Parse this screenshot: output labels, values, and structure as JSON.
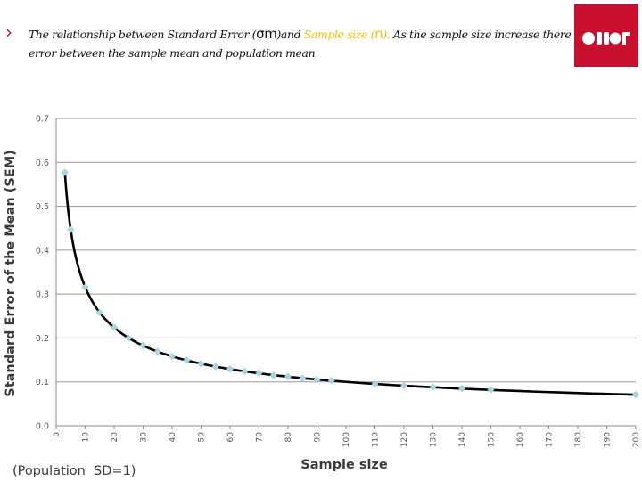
{
  "slide": {
    "bullet": "›",
    "text_part1": "The relationship between Standard Error (",
    "sigma_symbol": "σm",
    "text_part2": ")and ",
    "sample_size_label": "Sample size (",
    "n_symbol": "n",
    "sample_size_close": ").",
    "text_part3": " As the sample size increase there will be less error between the sample mean and population mean"
  },
  "colors": {
    "logo_red": "#c8102e",
    "highlight": "#f2c200",
    "curve": "#000000",
    "marker": "#a9d7e2",
    "grid": "#9a9a9a"
  },
  "chart_data": {
    "type": "line",
    "title": "",
    "xlabel": "Sample size",
    "ylabel": "Standard Error of the Mean (SEM)",
    "note": "(Population  SD=1)",
    "xlim": [
      0,
      200
    ],
    "ylim": [
      0,
      0.7
    ],
    "xticks": [
      "0",
      "10",
      "20",
      "30",
      "40",
      "50",
      "60",
      "70",
      "80",
      "90",
      "100",
      "110",
      "120",
      "130",
      "140",
      "150",
      "160",
      "170",
      "180",
      "190",
      "200"
    ],
    "yticks": [
      "0.0",
      "0.1",
      "0.2",
      "0.3",
      "0.4",
      "0.5",
      "0.6",
      "0.7"
    ],
    "grid": true,
    "legend": "none",
    "series": [
      {
        "x": [
          3,
          5,
          10,
          15,
          20,
          25,
          30,
          35,
          40,
          45,
          50,
          55,
          60,
          65,
          70,
          75,
          80,
          85,
          90,
          95,
          110,
          120,
          130,
          140,
          150,
          200
        ],
        "y": [
          0.577,
          0.447,
          0.316,
          0.258,
          0.224,
          0.2,
          0.183,
          0.169,
          0.158,
          0.149,
          0.141,
          0.135,
          0.129,
          0.124,
          0.12,
          0.115,
          0.112,
          0.108,
          0.105,
          0.103,
          0.095,
          0.091,
          0.088,
          0.085,
          0.082,
          0.071
        ]
      }
    ]
  }
}
